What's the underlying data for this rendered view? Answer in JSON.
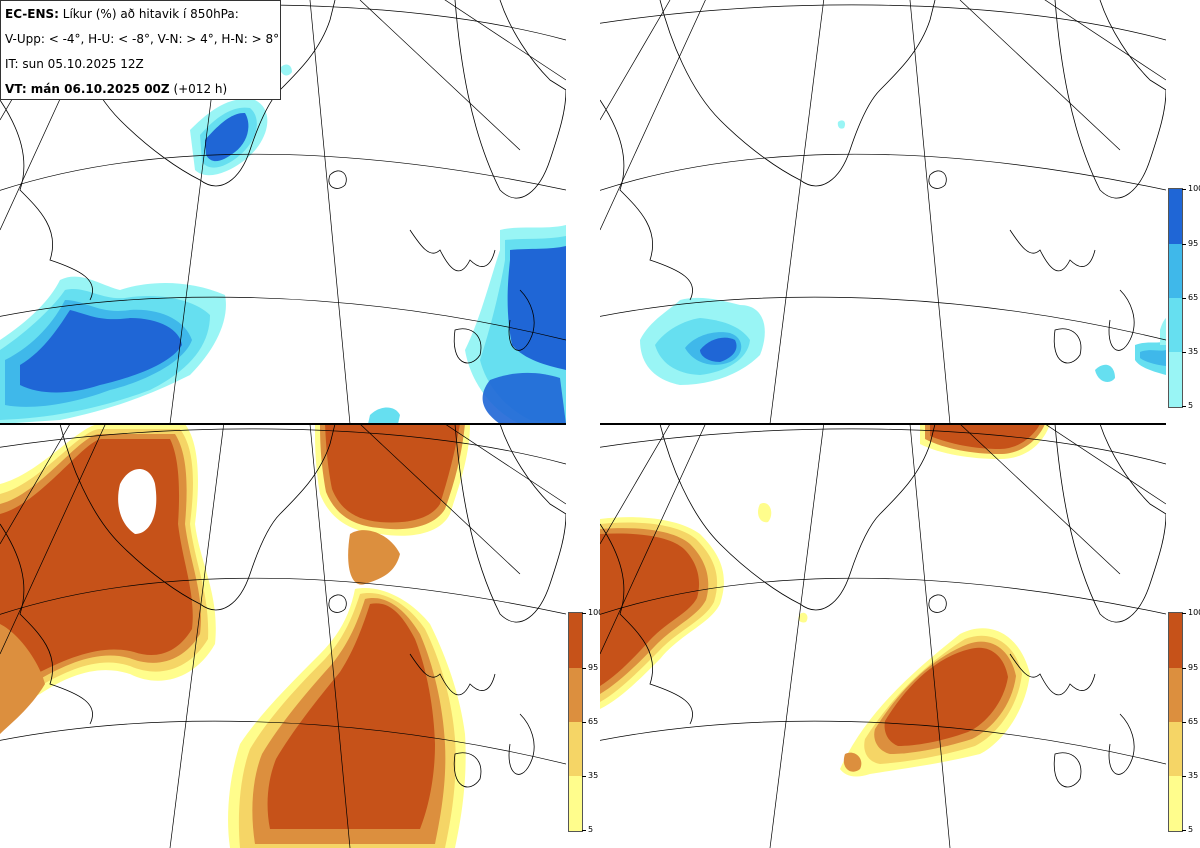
{
  "header": {
    "product": "EC-ENS:",
    "title": "Líkur (%) að hitavik í 850hPa:",
    "thresholds": "V-Upp: < -4°, H-U: < -8°, V-N: > 4°, H-N: > 8°",
    "initial_time": "IT: sun 05.10.2025 12Z",
    "valid_time_bold": "VT: mán 06.10.2025 00Z",
    "valid_time_offset": "(+012 h)"
  },
  "colorbar_labels": [
    "100",
    "95",
    "65",
    "35",
    "5"
  ],
  "colors": {
    "cold_scale": [
      "#99f5f5",
      "#66dff0",
      "#3fb8ea",
      "#1f66d6"
    ],
    "warm_scale": [
      "#fffd8c",
      "#f5d566",
      "#dc8f3e",
      "#c65219"
    ],
    "coast": "#000000",
    "grid": "#000000"
  },
  "panels": [
    {
      "name": "V-Upp",
      "scale": "cold"
    },
    {
      "name": "H-U",
      "scale": "cold"
    },
    {
      "name": "V-N",
      "scale": "warm"
    },
    {
      "name": "H-N",
      "scale": "warm"
    }
  ]
}
